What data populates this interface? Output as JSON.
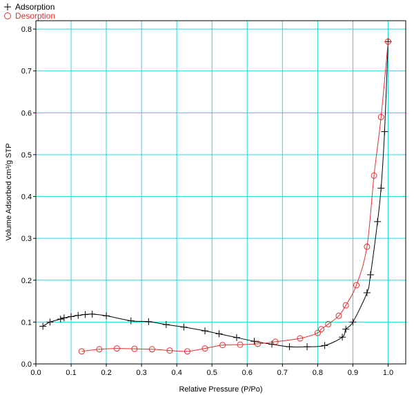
{
  "chart_data": {
    "type": "scatter",
    "xlabel": "Relative Pressure (P/Po)",
    "ylabel": "Volume Adsorbed cm³/g STP",
    "xlim": [
      0.0,
      1.05
    ],
    "ylim": [
      0.0,
      0.82
    ],
    "x_ticks": [
      "0.0",
      "0.1",
      "0.2",
      "0.3",
      "0.4",
      "0.5",
      "0.6",
      "0.7",
      "0.8",
      "0.9",
      "1.0"
    ],
    "y_ticks": [
      "0.0",
      "0.1",
      "0.2",
      "0.3",
      "0.4",
      "0.5",
      "0.6",
      "0.7",
      "0.8"
    ],
    "grid": true,
    "legend_position": "top-left",
    "series": [
      {
        "name": "Adsorption",
        "marker": "plus",
        "color": "#000000",
        "x": [
          0.02,
          0.04,
          0.07,
          0.08,
          0.1,
          0.12,
          0.14,
          0.16,
          0.2,
          0.27,
          0.32,
          0.37,
          0.42,
          0.48,
          0.52,
          0.57,
          0.62,
          0.67,
          0.72,
          0.77,
          0.82,
          0.87,
          0.88,
          0.9,
          0.94,
          0.95,
          0.97,
          0.98,
          0.99,
          1.0
        ],
        "y": [
          0.09,
          0.1,
          0.107,
          0.11,
          0.113,
          0.116,
          0.118,
          0.119,
          0.115,
          0.103,
          0.101,
          0.094,
          0.088,
          0.079,
          0.072,
          0.063,
          0.054,
          0.047,
          0.041,
          0.041,
          0.044,
          0.064,
          0.083,
          0.1,
          0.17,
          0.213,
          0.34,
          0.42,
          0.555,
          0.77
        ]
      },
      {
        "name": "Desorption",
        "marker": "circle",
        "color": "#e03030",
        "x": [
          0.13,
          0.18,
          0.23,
          0.28,
          0.33,
          0.38,
          0.43,
          0.48,
          0.53,
          0.58,
          0.63,
          0.68,
          0.75,
          0.8,
          0.81,
          0.83,
          0.86,
          0.88,
          0.91,
          0.94,
          0.96,
          0.98,
          1.0
        ],
        "y": [
          0.03,
          0.035,
          0.037,
          0.036,
          0.035,
          0.032,
          0.03,
          0.037,
          0.045,
          0.046,
          0.048,
          0.053,
          0.061,
          0.074,
          0.083,
          0.095,
          0.115,
          0.14,
          0.188,
          0.28,
          0.45,
          0.59,
          0.77
        ]
      }
    ]
  }
}
